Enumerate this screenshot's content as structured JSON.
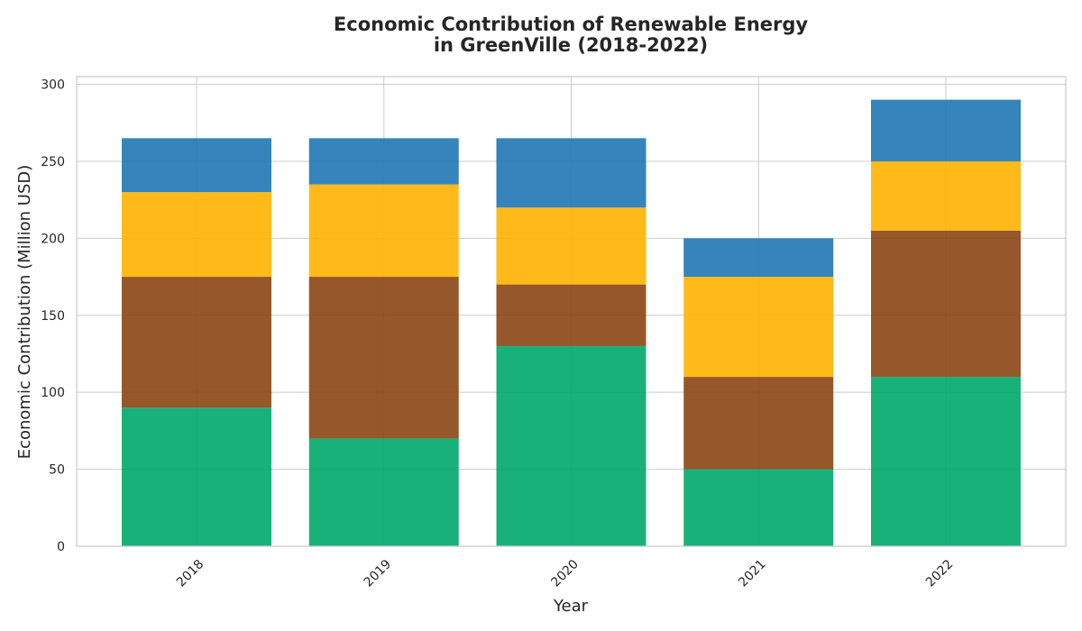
{
  "chart_data": {
    "type": "bar",
    "stacked": true,
    "title_lines": [
      "Economic Contribution of Renewable Energy",
      "in GreenVille (2018-2022)"
    ],
    "xlabel": "Year",
    "ylabel": "Economic Contribution (Million USD)",
    "categories": [
      "2018",
      "2019",
      "2020",
      "2021",
      "2022"
    ],
    "ylim": [
      0,
      305
    ],
    "yticks": [
      0,
      50,
      100,
      150,
      200,
      250,
      300
    ],
    "grid": true,
    "series": [
      {
        "color": "#00A86B",
        "values": [
          90,
          70,
          130,
          50,
          110
        ]
      },
      {
        "color": "#8B4513",
        "values": [
          85,
          105,
          40,
          60,
          95
        ]
      },
      {
        "color": "#FFB300",
        "values": [
          55,
          60,
          50,
          65,
          45
        ]
      },
      {
        "color": "#1F77B4",
        "values": [
          35,
          30,
          45,
          25,
          40
        ]
      }
    ]
  }
}
